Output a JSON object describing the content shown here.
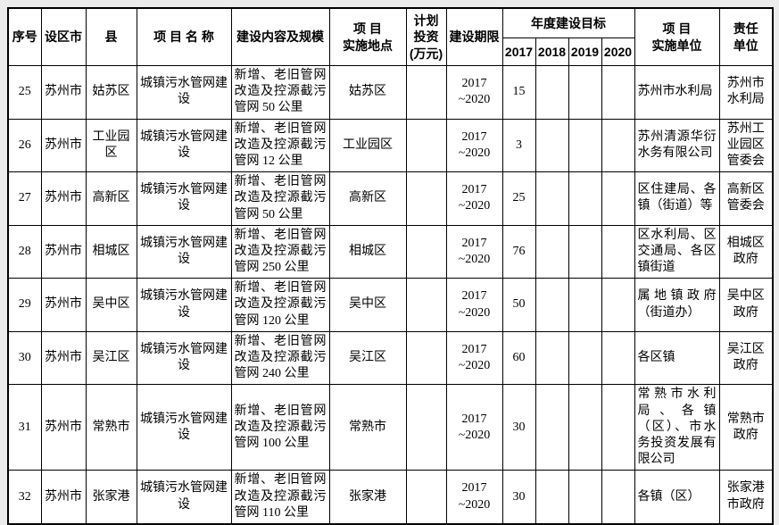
{
  "table": {
    "headers": {
      "no": "序号",
      "city": "设区市",
      "county": "县",
      "project": "项 目 名 称",
      "content": "建设内容及规模",
      "location": "项  目\n实施地点",
      "investment": "计划\n投资\n(万元)",
      "period": "建设期限",
      "annual_goal": "年度建设目标",
      "y2017": "2017",
      "y2018": "2018",
      "y2019": "2019",
      "y2020": "2020",
      "implementer": "项  目\n实施单位",
      "responsible": "责任\n单位"
    },
    "rows": [
      {
        "no": "25",
        "city": "苏州市",
        "county": "姑苏区",
        "project": "城镇污水管网建设",
        "content": "新增、老旧管网改造及控源截污管网 50 公里",
        "location": "姑苏区",
        "investment": "",
        "period": "2017\n~2020",
        "y2017": "15",
        "y2018": "",
        "y2019": "",
        "y2020": "",
        "implementer": "苏州市水利局",
        "responsible": "苏州市\n水利局"
      },
      {
        "no": "26",
        "city": "苏州市",
        "county": "工业园区",
        "project": "城镇污水管网建设",
        "content": "新增、老旧管网改造及控源截污管网 12 公里",
        "location": "工业园区",
        "investment": "",
        "period": "2017\n~2020",
        "y2017": "3",
        "y2018": "",
        "y2019": "",
        "y2020": "",
        "implementer": "苏州清源华衍水务有限公司",
        "responsible": "苏州工业园区管委会"
      },
      {
        "no": "27",
        "city": "苏州市",
        "county": "高新区",
        "project": "城镇污水管网建设",
        "content": "新增、老旧管网改造及控源截污管网 50 公里",
        "location": "高新区",
        "investment": "",
        "period": "2017\n~2020",
        "y2017": "25",
        "y2018": "",
        "y2019": "",
        "y2020": "",
        "implementer": "区住建局、各镇（街道）等",
        "responsible": "高新区\n管委会"
      },
      {
        "no": "28",
        "city": "苏州市",
        "county": "相城区",
        "project": "城镇污水管网建设",
        "content": "新增、老旧管网改造及控源截污管网 250 公里",
        "location": "相城区",
        "investment": "",
        "period": "2017\n~2020",
        "y2017": "76",
        "y2018": "",
        "y2019": "",
        "y2020": "",
        "implementer": "区水利局、区交通局、各区镇街道",
        "responsible": "相城区\n政府"
      },
      {
        "no": "29",
        "city": "苏州市",
        "county": "吴中区",
        "project": "城镇污水管网建设",
        "content": "新增、老旧管网改造及控源截污管网 120 公里",
        "location": "吴中区",
        "investment": "",
        "period": "2017\n~2020",
        "y2017": "50",
        "y2018": "",
        "y2019": "",
        "y2020": "",
        "implementer": "属地镇政府（街道办）",
        "responsible": "吴中区\n政府"
      },
      {
        "no": "30",
        "city": "苏州市",
        "county": "吴江区",
        "project": "城镇污水管网建设",
        "content": "新增、老旧管网改造及控源截污管网 240 公里",
        "location": "吴江区",
        "investment": "",
        "period": "2017\n~2020",
        "y2017": "60",
        "y2018": "",
        "y2019": "",
        "y2020": "",
        "implementer": "各区镇",
        "responsible": "吴江区\n政府"
      },
      {
        "no": "31",
        "city": "苏州市",
        "county": "常熟市",
        "project": "城镇污水管网建设",
        "content": "新增、老旧管网改造及控源截污管网 100 公里",
        "location": "常熟市",
        "investment": "",
        "period": "2017\n~2020",
        "y2017": "30",
        "y2018": "",
        "y2019": "",
        "y2020": "",
        "implementer": "常熟市水利局、各镇（区）、市水务投资发展有限公司",
        "responsible": "常熟市\n政府"
      },
      {
        "no": "32",
        "city": "苏州市",
        "county": "张家港",
        "project": "城镇污水管网建设",
        "content": "新增、老旧管网改造及控源截污管网 110 公里",
        "location": "张家港",
        "investment": "",
        "period": "2017\n~2020",
        "y2017": "30",
        "y2018": "",
        "y2019": "",
        "y2020": "",
        "implementer": "各镇（区）",
        "responsible": "张家港\n市政府"
      }
    ]
  }
}
